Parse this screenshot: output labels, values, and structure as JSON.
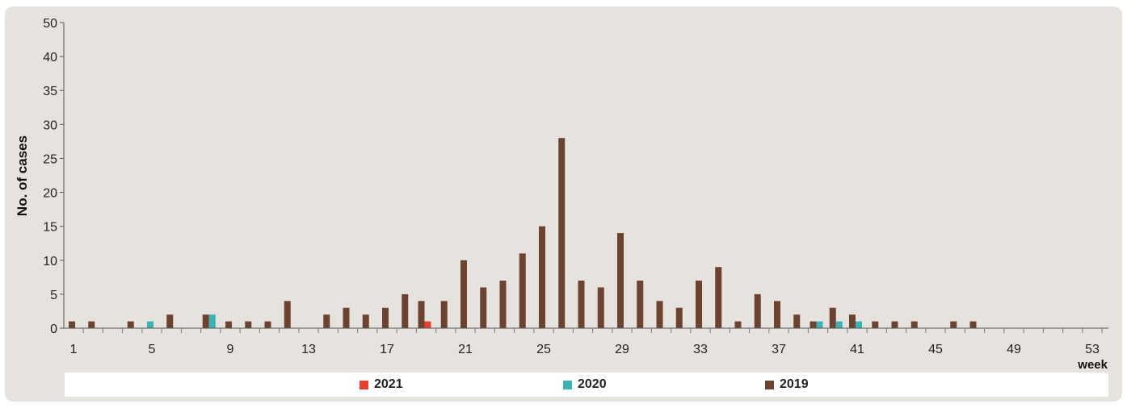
{
  "chart_data": {
    "type": "bar",
    "ylabel": "No. of cases",
    "xlabel": "week",
    "ylim": [
      0,
      50
    ],
    "yticks": [
      0,
      5,
      10,
      15,
      20,
      25,
      30,
      35,
      40,
      50
    ],
    "xlim": [
      1,
      53
    ],
    "xticks": [
      1,
      5,
      9,
      13,
      17,
      21,
      25,
      29,
      33,
      37,
      41,
      45,
      49,
      53
    ],
    "legend_position": "bottom",
    "series": [
      {
        "name": "2021",
        "color": "#e8402e",
        "weeks": [
          19
        ],
        "values": [
          1
        ]
      },
      {
        "name": "2020",
        "color": "#3bb3b5",
        "weeks": [
          5,
          8,
          39,
          40,
          41
        ],
        "values": [
          1,
          2,
          1,
          1,
          1
        ]
      },
      {
        "name": "2019",
        "color": "#6b4330",
        "weeks": [
          1,
          2,
          4,
          6,
          8,
          9,
          10,
          11,
          12,
          14,
          15,
          16,
          17,
          18,
          19,
          20,
          21,
          22,
          23,
          24,
          25,
          26,
          27,
          28,
          29,
          30,
          31,
          32,
          33,
          34,
          35,
          36,
          37,
          38,
          39,
          40,
          41,
          42,
          43,
          44,
          46,
          47
        ],
        "values": [
          1,
          1,
          1,
          2,
          2,
          1,
          1,
          1,
          4,
          2,
          3,
          2,
          3,
          5,
          4,
          4,
          10,
          6,
          7,
          11,
          15,
          28,
          7,
          6,
          14,
          7,
          4,
          3,
          7,
          9,
          1,
          5,
          4,
          2,
          1,
          3,
          2,
          1,
          1,
          1,
          1,
          1
        ]
      }
    ]
  }
}
